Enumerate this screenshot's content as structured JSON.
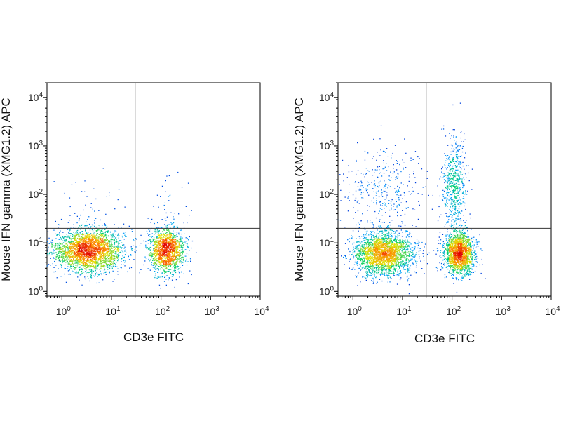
{
  "chart_data": [
    {
      "type": "scatter",
      "xlabel": "CD3e FITC",
      "ylabel": "Mouse IFN gamma (XMG1.2) APC",
      "xscale": "log",
      "yscale": "log",
      "xlim": [
        0.5,
        10000
      ],
      "ylim": [
        0.8,
        20000
      ],
      "x_ticks": [
        "10^0",
        "10^1",
        "10^2",
        "10^3",
        "10^4"
      ],
      "y_ticks": [
        "10^0",
        "10^1",
        "10^2",
        "10^3",
        "10^4"
      ],
      "quadrant_gates": {
        "x": 30,
        "y": 20
      },
      "color_scale": [
        "#0000c8",
        "#00a0ff",
        "#00d070",
        "#e0e000",
        "#ff8000",
        "#e00000"
      ],
      "clusters": [
        {
          "x": 3.5,
          "y": 7,
          "sx": 0.35,
          "sy": 0.22,
          "n": 2600
        },
        {
          "x": 130,
          "y": 7,
          "sx": 0.18,
          "sy": 0.22,
          "n": 1500
        },
        {
          "x": 4,
          "y": 40,
          "sx": 0.45,
          "sy": 0.5,
          "n": 60
        },
        {
          "x": 150,
          "y": 60,
          "sx": 0.2,
          "sy": 0.5,
          "n": 40
        }
      ]
    },
    {
      "type": "scatter",
      "xlabel": "CD3e FITC",
      "ylabel": "Mouse IFN gamma (XMG1.2) APC",
      "xscale": "log",
      "yscale": "log",
      "xlim": [
        0.5,
        10000
      ],
      "ylim": [
        0.8,
        20000
      ],
      "x_ticks": [
        "10^0",
        "10^1",
        "10^2",
        "10^3",
        "10^4"
      ],
      "y_ticks": [
        "10^0",
        "10^1",
        "10^2",
        "10^3",
        "10^4"
      ],
      "quadrant_gates": {
        "x": 30,
        "y": 20
      },
      "color_scale": [
        "#0000c8",
        "#00a0ff",
        "#00d070",
        "#e0e000",
        "#ff8000",
        "#e00000"
      ],
      "clusters": [
        {
          "x": 4,
          "y": 6,
          "sx": 0.3,
          "sy": 0.22,
          "n": 2400
        },
        {
          "x": 140,
          "y": 6,
          "sx": 0.15,
          "sy": 0.22,
          "n": 1700
        },
        {
          "x": 4,
          "y": 120,
          "sx": 0.4,
          "sy": 0.45,
          "n": 350
        },
        {
          "x": 110,
          "y": 150,
          "sx": 0.12,
          "sy": 0.5,
          "n": 600
        }
      ]
    }
  ]
}
